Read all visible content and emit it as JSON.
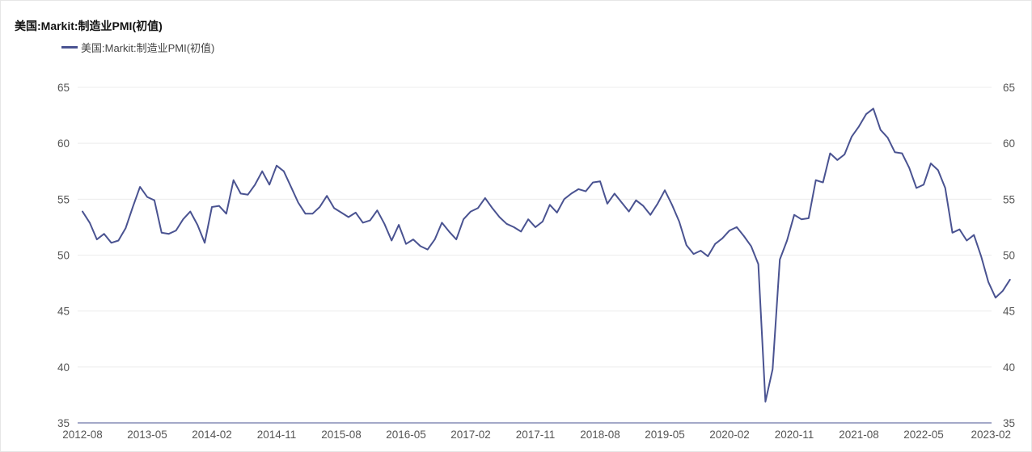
{
  "title": "美国:Markit:制造业PMI(初值)",
  "colors": {
    "series": "#4a5391",
    "grid": "#ececec",
    "axis": "#4a5391"
  },
  "chart_data": {
    "type": "line",
    "title": "美国:Markit:制造业PMI(初值)",
    "xlabel": "",
    "ylabel": "",
    "ylim": [
      35,
      65
    ],
    "yticks": [
      65,
      60,
      55,
      50,
      45,
      40,
      35
    ],
    "y_axis_both_sides": true,
    "grid": "horizontal",
    "legend_position": "top-left",
    "x_tick_labels": [
      "2012-08",
      "2013-05",
      "2014-02",
      "2014-11",
      "2015-08",
      "2016-05",
      "2017-02",
      "2017-11",
      "2018-08",
      "2019-05",
      "2020-02",
      "2020-11",
      "2021-08",
      "2022-05",
      "2023-02"
    ],
    "x_start": "2012-08",
    "x_end": "2023-02",
    "series": [
      {
        "name": "美国:Markit:制造业PMI(初值)",
        "values": [
          53.9,
          52.9,
          51.4,
          51.9,
          51.1,
          51.3,
          52.4,
          54.3,
          56.1,
          55.2,
          54.9,
          52.0,
          51.9,
          52.2,
          53.2,
          53.9,
          52.7,
          51.1,
          54.3,
          54.4,
          53.7,
          56.7,
          55.5,
          55.4,
          56.3,
          57.5,
          56.3,
          58.0,
          57.5,
          56.1,
          54.7,
          53.7,
          53.7,
          54.3,
          55.3,
          54.2,
          53.8,
          53.4,
          53.8,
          52.9,
          53.1,
          54.0,
          52.8,
          51.3,
          52.7,
          51.0,
          51.4,
          50.8,
          50.5,
          51.4,
          52.9,
          52.1,
          51.4,
          53.2,
          53.9,
          54.2,
          55.1,
          54.2,
          53.4,
          52.8,
          52.5,
          52.1,
          53.2,
          52.5,
          53.0,
          54.5,
          53.8,
          55.0,
          55.5,
          55.9,
          55.7,
          56.5,
          56.6,
          54.6,
          55.5,
          54.7,
          53.9,
          54.9,
          54.4,
          53.6,
          54.6,
          55.8,
          54.5,
          53.0,
          50.9,
          50.1,
          50.4,
          49.9,
          51.0,
          51.5,
          52.2,
          52.5,
          51.7,
          50.8,
          49.2,
          36.9,
          39.8,
          49.6,
          51.3,
          53.6,
          53.2,
          53.3,
          56.7,
          56.5,
          59.1,
          58.5,
          59.0,
          60.6,
          61.5,
          62.6,
          63.1,
          61.2,
          60.5,
          59.2,
          59.1,
          57.8,
          56.0,
          56.3,
          58.2,
          57.6,
          56.0,
          52.0,
          52.3,
          51.3,
          51.8,
          49.9,
          47.6,
          46.2,
          46.8,
          47.8
        ]
      }
    ]
  }
}
